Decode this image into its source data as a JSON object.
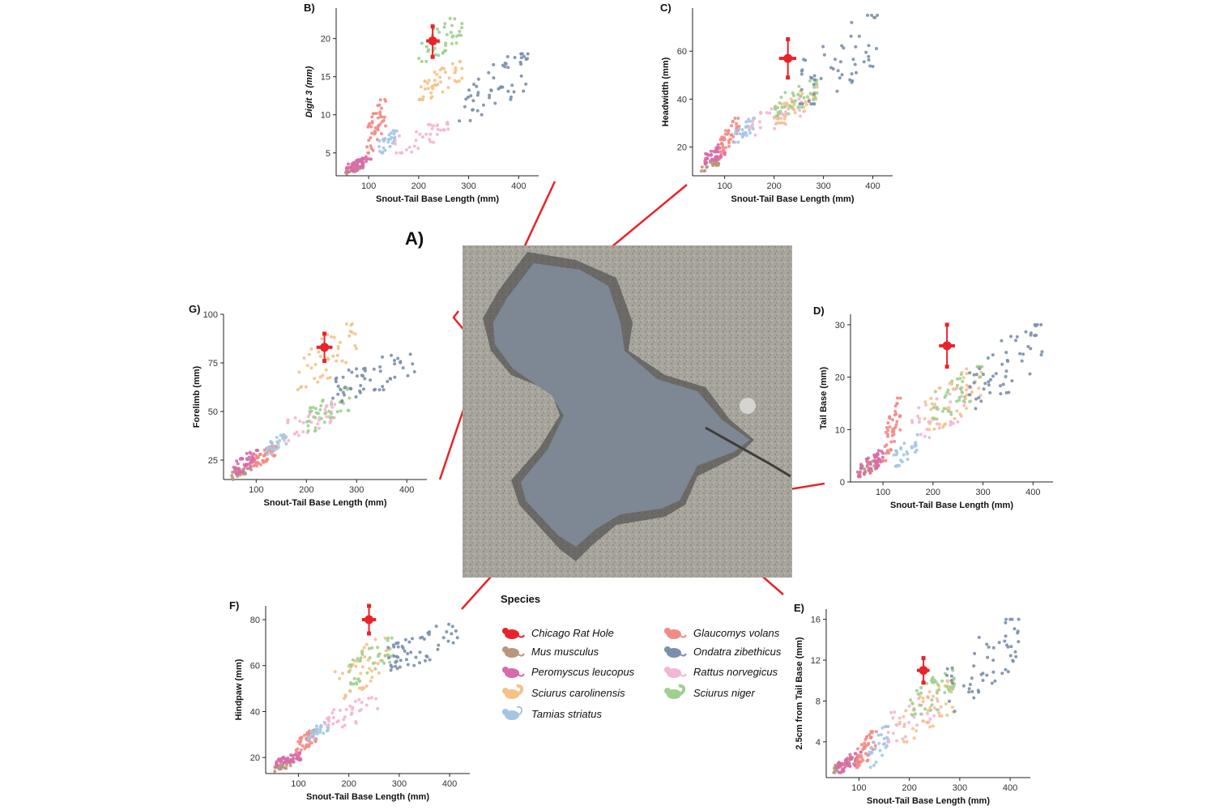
{
  "figure_label": "A)",
  "legend": {
    "title": "Species",
    "items": [
      {
        "name": "Chicago Rat Hole",
        "color": "#e8242a",
        "icon": "rat-icon"
      },
      {
        "name": "Glaucomys volans",
        "color": "#f28b86",
        "icon": "flying-squirrel-icon"
      },
      {
        "name": "Mus musculus",
        "color": "#b8967e",
        "icon": "mouse-icon"
      },
      {
        "name": "Ondatra zibethicus",
        "color": "#7a8fab",
        "icon": "muskrat-icon"
      },
      {
        "name": "Peromyscus leucopus",
        "color": "#d96aa7",
        "icon": "deer-mouse-icon"
      },
      {
        "name": "Rattus norvegicus",
        "color": "#f2b6d3",
        "icon": "rat-icon"
      },
      {
        "name": "Sciurus carolinensis",
        "color": "#f4c28a",
        "icon": "squirrel-icon"
      },
      {
        "name": "Sciurus niger",
        "color": "#9fd08f",
        "icon": "squirrel-icon"
      },
      {
        "name": "Tamias striatus",
        "color": "#a4c6e4",
        "icon": "chipmunk-icon"
      }
    ]
  },
  "chart_data": [
    {
      "panel": "B)",
      "type": "scatter",
      "xlabel": "Snout-Tail Base Length (mm)",
      "ylabel": "Digit 3 (mm)",
      "xlim": [
        35,
        440
      ],
      "ylim": [
        2,
        24
      ],
      "xticks": [
        100,
        200,
        300,
        400
      ],
      "yticks": [
        5,
        10,
        15,
        20
      ],
      "series": [
        {
          "name": "Mus musculus",
          "x_range": [
            50,
            90
          ],
          "y_range": [
            2,
            4
          ],
          "n": 28
        },
        {
          "name": "Peromyscus leucopus",
          "x_range": [
            55,
            105
          ],
          "y_range": [
            2.5,
            4.5
          ],
          "n": 45
        },
        {
          "name": "Glaucomys volans",
          "x_range": [
            95,
            135
          ],
          "y_range": [
            5,
            12
          ],
          "n": 45
        },
        {
          "name": "Tamias striatus",
          "x_range": [
            120,
            160
          ],
          "y_range": [
            5,
            8
          ],
          "n": 28
        },
        {
          "name": "Rattus norvegicus",
          "x_range": [
            150,
            260
          ],
          "y_range": [
            5,
            9
          ],
          "n": 35
        },
        {
          "name": "Sciurus carolinensis",
          "x_range": [
            200,
            290
          ],
          "y_range": [
            12,
            17
          ],
          "n": 45
        },
        {
          "name": "Sciurus niger",
          "x_range": [
            200,
            290
          ],
          "y_range": [
            17,
            23
          ],
          "n": 40
        },
        {
          "name": "Ondatra zibethicus",
          "x_range": [
            280,
            420
          ],
          "y_range": [
            9,
            18
          ],
          "n": 55
        }
      ],
      "rat_hole": {
        "x": 228,
        "y": 19.7,
        "x_err": [
          215,
          242
        ],
        "y_err": [
          17.6,
          21.6
        ]
      }
    },
    {
      "panel": "C)",
      "type": "scatter",
      "xlabel": "Snout-Tail Base Length (mm)",
      "ylabel": "Headwidth (mm)",
      "xlim": [
        35,
        440
      ],
      "ylim": [
        8,
        78
      ],
      "xticks": [
        100,
        200,
        300,
        400
      ],
      "yticks": [
        20,
        40,
        60
      ],
      "series": [
        {
          "name": "Mus musculus",
          "x_range": [
            50,
            90
          ],
          "y_range": [
            10,
            15
          ],
          "n": 28
        },
        {
          "name": "Peromyscus leucopus",
          "x_range": [
            60,
            105
          ],
          "y_range": [
            13,
            22
          ],
          "n": 45
        },
        {
          "name": "Glaucomys volans",
          "x_range": [
            90,
            130
          ],
          "y_range": [
            18,
            32
          ],
          "n": 45
        },
        {
          "name": "Tamias striatus",
          "x_range": [
            120,
            160
          ],
          "y_range": [
            22,
            32
          ],
          "n": 28
        },
        {
          "name": "Rattus norvegicus",
          "x_range": [
            150,
            260
          ],
          "y_range": [
            25,
            40
          ],
          "n": 35
        },
        {
          "name": "Sciurus carolinensis",
          "x_range": [
            200,
            290
          ],
          "y_range": [
            30,
            45
          ],
          "n": 45
        },
        {
          "name": "Sciurus niger",
          "x_range": [
            200,
            290
          ],
          "y_range": [
            33,
            48
          ],
          "n": 40
        },
        {
          "name": "Ondatra zibethicus",
          "x_range": [
            250,
            420
          ],
          "y_range": [
            38,
            75
          ],
          "n": 55
        }
      ],
      "rat_hole": {
        "x": 228,
        "y": 57,
        "x_err": [
          210,
          245
        ],
        "y_err": [
          49,
          65
        ]
      }
    },
    {
      "panel": "D)",
      "type": "scatter",
      "xlabel": "Snout-Tail Base Length (mm)",
      "ylabel": "Tail Base (mm)",
      "xlim": [
        35,
        440
      ],
      "ylim": [
        0,
        32
      ],
      "xticks": [
        100,
        200,
        300,
        400
      ],
      "yticks": [
        0,
        10,
        20,
        30
      ],
      "series": [
        {
          "name": "Mus musculus",
          "x_range": [
            45,
            90
          ],
          "y_range": [
            1,
            4
          ],
          "n": 28
        },
        {
          "name": "Peromyscus leucopus",
          "x_range": [
            50,
            100
          ],
          "y_range": [
            1,
            6
          ],
          "n": 45
        },
        {
          "name": "Glaucomys volans",
          "x_range": [
            100,
            135
          ],
          "y_range": [
            4,
            16
          ],
          "n": 45
        },
        {
          "name": "Tamias striatus",
          "x_range": [
            120,
            170
          ],
          "y_range": [
            3,
            9
          ],
          "n": 28
        },
        {
          "name": "Rattus norvegicus",
          "x_range": [
            150,
            280
          ],
          "y_range": [
            8,
            18
          ],
          "n": 35
        },
        {
          "name": "Sciurus carolinensis",
          "x_range": [
            180,
            300
          ],
          "y_range": [
            10,
            22
          ],
          "n": 45
        },
        {
          "name": "Sciurus niger",
          "x_range": [
            200,
            300
          ],
          "y_range": [
            12,
            22
          ],
          "n": 40
        },
        {
          "name": "Ondatra zibethicus",
          "x_range": [
            270,
            420
          ],
          "y_range": [
            14,
            30
          ],
          "n": 55
        }
      ],
      "rat_hole": {
        "x": 228,
        "y": 26,
        "x_err": [
          212,
          244
        ],
        "y_err": [
          22,
          30
        ]
      }
    },
    {
      "panel": "E)",
      "type": "scatter",
      "xlabel": "Snout-Tail Base Length (mm)",
      "ylabel": "2.5cm from Tail Base (mm)",
      "xlim": [
        35,
        440
      ],
      "ylim": [
        0.5,
        17
      ],
      "xticks": [
        100,
        200,
        300,
        400
      ],
      "yticks": [
        4,
        8,
        12,
        16
      ],
      "series": [
        {
          "name": "Mus musculus",
          "x_range": [
            50,
            90
          ],
          "y_range": [
            1,
            2.5
          ],
          "n": 28
        },
        {
          "name": "Peromyscus leucopus",
          "x_range": [
            55,
            105
          ],
          "y_range": [
            1,
            3
          ],
          "n": 45
        },
        {
          "name": "Glaucomys volans",
          "x_range": [
            95,
            135
          ],
          "y_range": [
            1.5,
            5
          ],
          "n": 45
        },
        {
          "name": "Tamias striatus",
          "x_range": [
            120,
            160
          ],
          "y_range": [
            1.5,
            5.5
          ],
          "n": 28
        },
        {
          "name": "Rattus norvegicus",
          "x_range": [
            150,
            260
          ],
          "y_range": [
            4,
            9
          ],
          "n": 35
        },
        {
          "name": "Sciurus carolinensis",
          "x_range": [
            180,
            290
          ],
          "y_range": [
            4,
            10
          ],
          "n": 45
        },
        {
          "name": "Sciurus niger",
          "x_range": [
            200,
            290
          ],
          "y_range": [
            6,
            11
          ],
          "n": 40
        },
        {
          "name": "Ondatra zibethicus",
          "x_range": [
            270,
            420
          ],
          "y_range": [
            7,
            16
          ],
          "n": 55
        }
      ],
      "rat_hole": {
        "x": 228,
        "y": 11,
        "x_err": [
          215,
          240
        ],
        "y_err": [
          9.8,
          12.2
        ]
      }
    },
    {
      "panel": "F)",
      "type": "scatter",
      "xlabel": "Snout-Tail Base Length (mm)",
      "ylabel": "Hindpaw (mm)",
      "xlim": [
        35,
        440
      ],
      "ylim": [
        13,
        86
      ],
      "xticks": [
        100,
        200,
        300,
        400
      ],
      "yticks": [
        20,
        40,
        60,
        80
      ],
      "series": [
        {
          "name": "Mus musculus",
          "x_range": [
            50,
            90
          ],
          "y_range": [
            14,
            19
          ],
          "n": 28
        },
        {
          "name": "Peromyscus leucopus",
          "x_range": [
            55,
            105
          ],
          "y_range": [
            16,
            22
          ],
          "n": 45
        },
        {
          "name": "Glaucomys volans",
          "x_range": [
            95,
            135
          ],
          "y_range": [
            22,
            32
          ],
          "n": 45
        },
        {
          "name": "Tamias striatus",
          "x_range": [
            120,
            160
          ],
          "y_range": [
            28,
            36
          ],
          "n": 28
        },
        {
          "name": "Rattus norvegicus",
          "x_range": [
            150,
            260
          ],
          "y_range": [
            32,
            46
          ],
          "n": 35
        },
        {
          "name": "Sciurus carolinensis",
          "x_range": [
            170,
            280
          ],
          "y_range": [
            45,
            72
          ],
          "n": 45
        },
        {
          "name": "Sciurus niger",
          "x_range": [
            200,
            290
          ],
          "y_range": [
            52,
            72
          ],
          "n": 40
        },
        {
          "name": "Ondatra zibethicus",
          "x_range": [
            270,
            420
          ],
          "y_range": [
            58,
            78
          ],
          "n": 55
        }
      ],
      "rat_hole": {
        "x": 240,
        "y": 80,
        "x_err": [
          226,
          254
        ],
        "y_err": [
          74,
          86
        ]
      }
    },
    {
      "panel": "G)",
      "type": "scatter",
      "xlabel": "Snout-Tail Base Length (mm)",
      "ylabel": "Forelimb (mm)",
      "xlim": [
        35,
        440
      ],
      "ylim": [
        15,
        100
      ],
      "xticks": [
        100,
        200,
        300,
        400
      ],
      "yticks": [
        25,
        50,
        75,
        100
      ],
      "series": [
        {
          "name": "Mus musculus",
          "x_range": [
            50,
            90
          ],
          "y_range": [
            15,
            23
          ],
          "n": 28
        },
        {
          "name": "Peromyscus leucopus",
          "x_range": [
            55,
            105
          ],
          "y_range": [
            18,
            30
          ],
          "n": 45
        },
        {
          "name": "Glaucomys volans",
          "x_range": [
            95,
            140
          ],
          "y_range": [
            22,
            32
          ],
          "n": 45
        },
        {
          "name": "Tamias striatus",
          "x_range": [
            120,
            160
          ],
          "y_range": [
            28,
            38
          ],
          "n": 28
        },
        {
          "name": "Rattus norvegicus",
          "x_range": [
            150,
            260
          ],
          "y_range": [
            35,
            55
          ],
          "n": 35
        },
        {
          "name": "Sciurus carolinensis",
          "x_range": [
            180,
            300
          ],
          "y_range": [
            60,
            95
          ],
          "n": 45
        },
        {
          "name": "Sciurus niger",
          "x_range": [
            200,
            290
          ],
          "y_range": [
            40,
            62
          ],
          "n": 40
        },
        {
          "name": "Ondatra zibethicus",
          "x_range": [
            250,
            420
          ],
          "y_range": [
            55,
            82
          ],
          "n": 55
        }
      ],
      "rat_hole": {
        "x": 236,
        "y": 83,
        "x_err": [
          220,
          252
        ],
        "y_err": [
          76,
          90
        ]
      }
    }
  ]
}
